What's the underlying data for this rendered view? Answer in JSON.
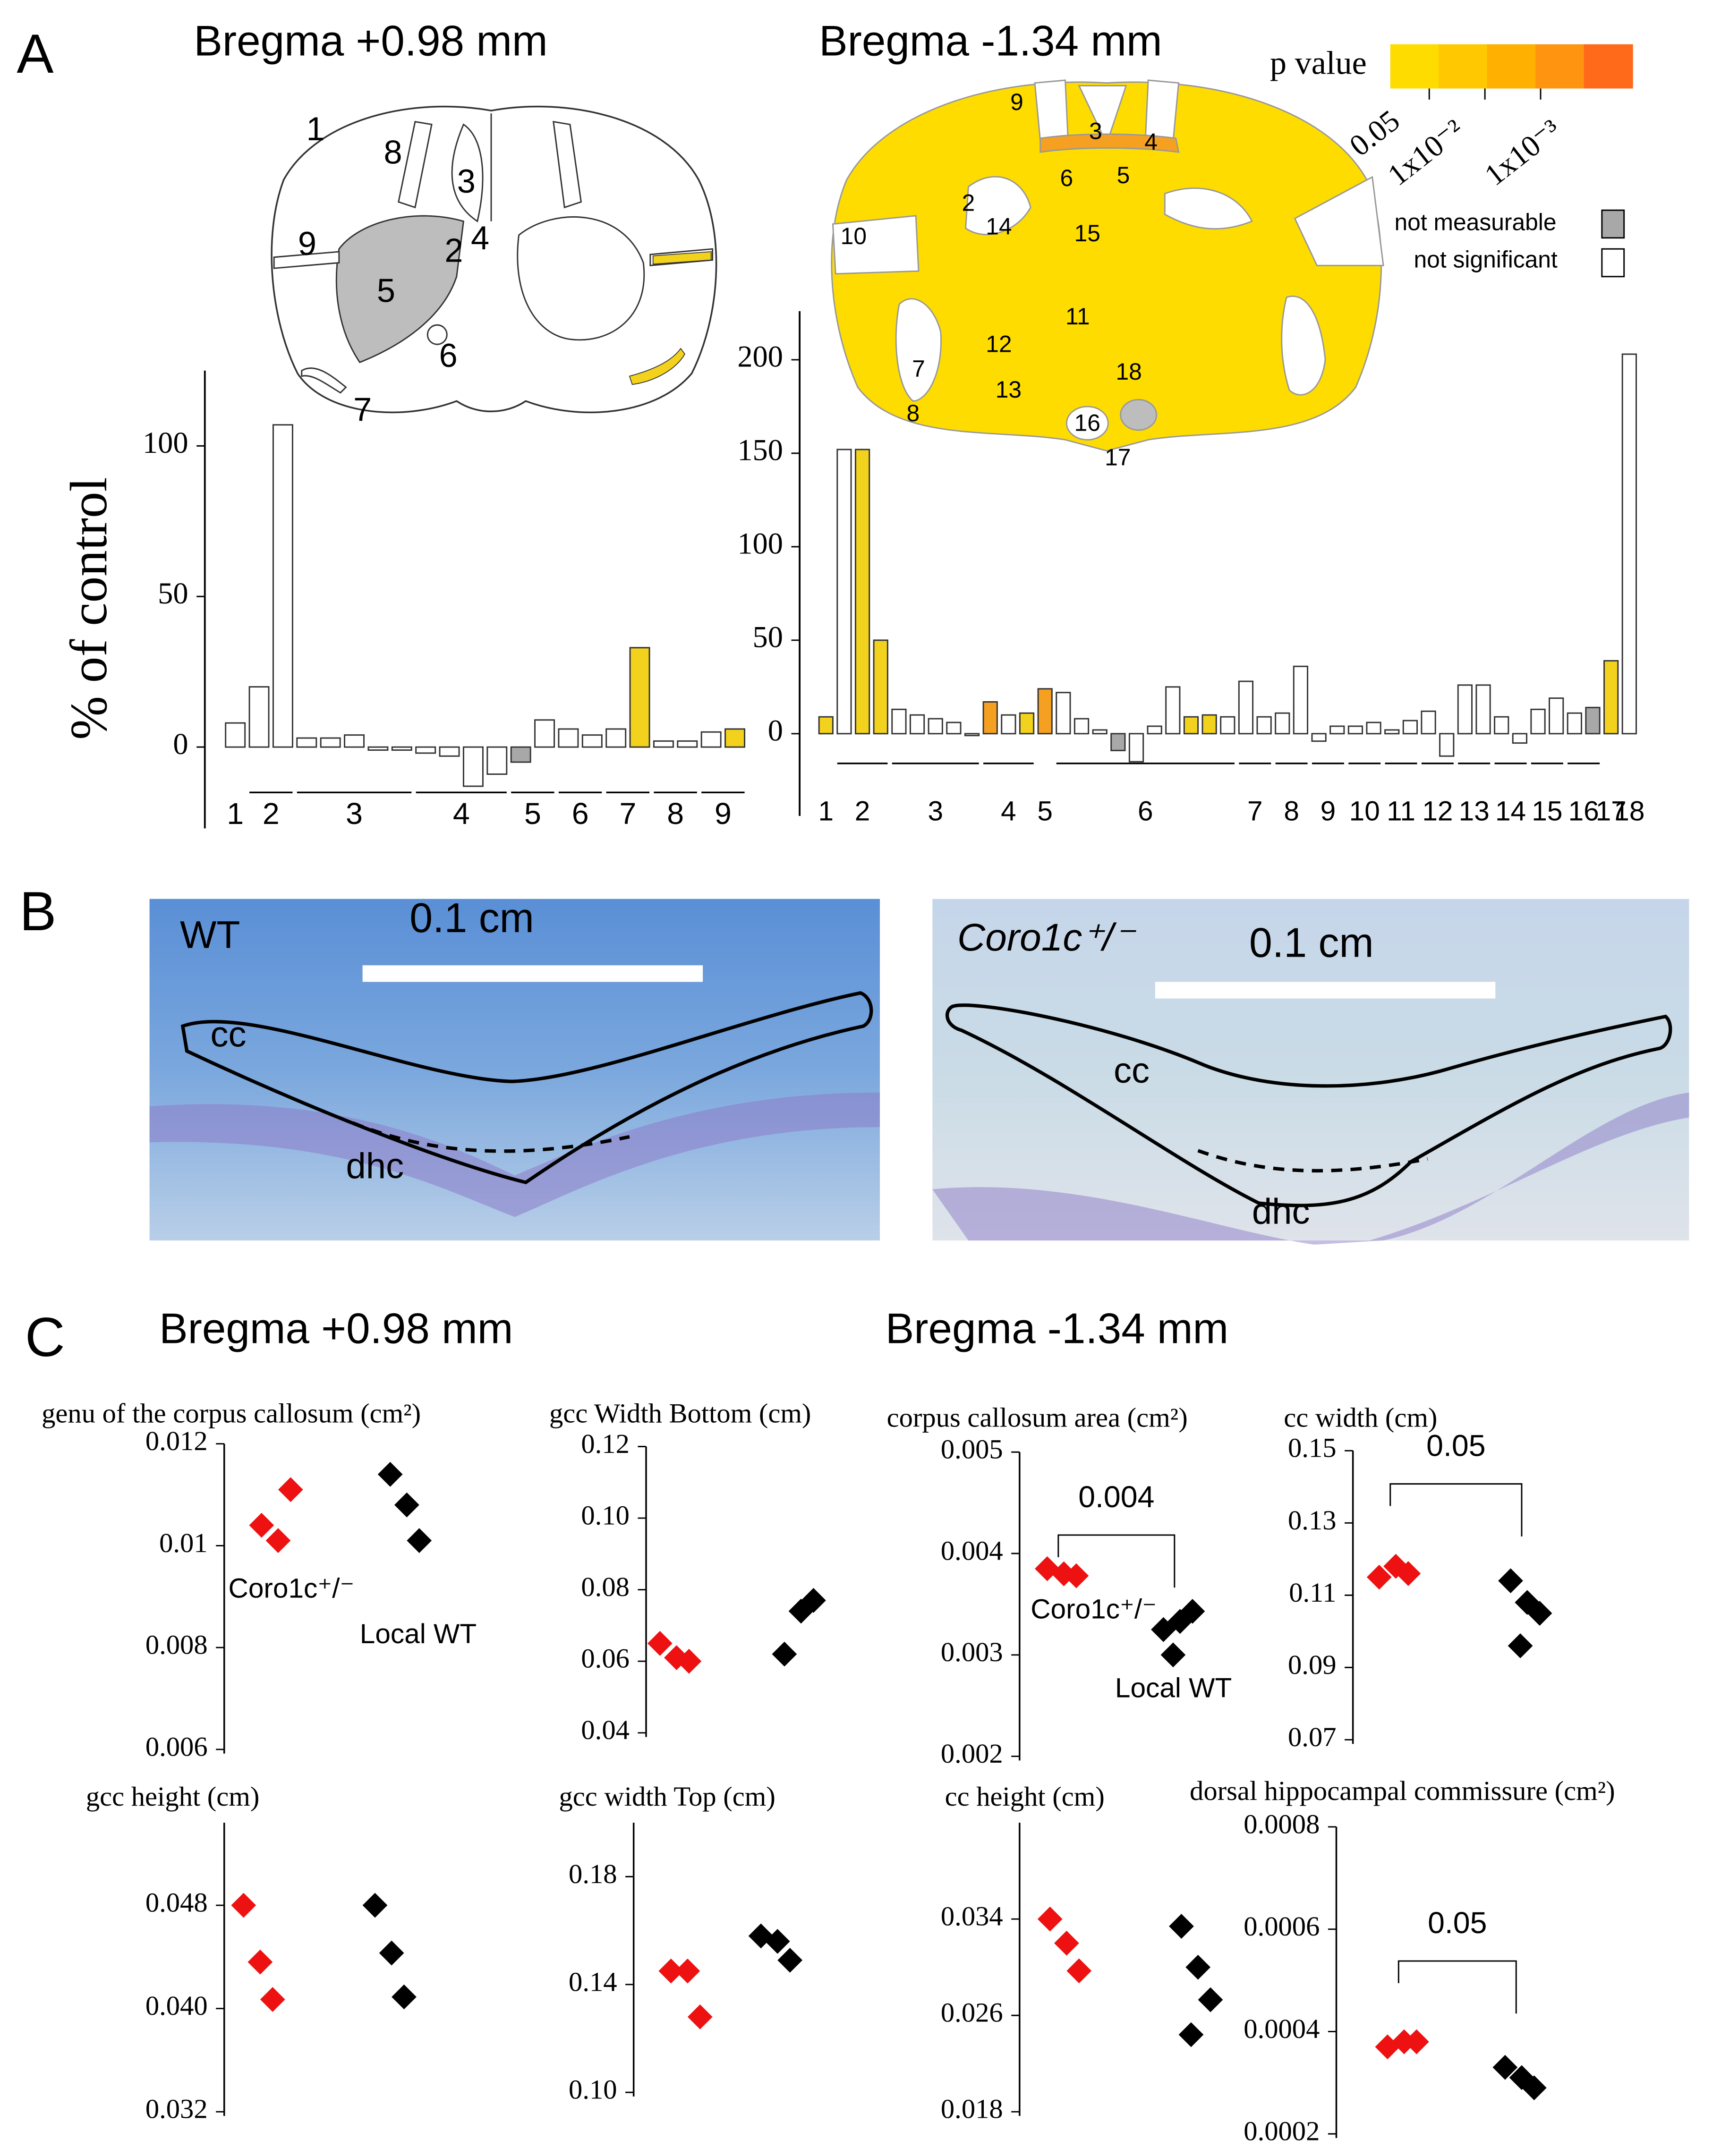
{
  "panel_labels": [
    "A",
    "B",
    "C"
  ],
  "panel_a": {
    "title_left": "Bregma +0.98 mm",
    "title_right": "Bregma -1.34 mm",
    "left_map_labels": [
      "1",
      "8",
      "3",
      "9",
      "2",
      "4",
      "5",
      "6",
      "7"
    ],
    "right_map_labels": [
      "9",
      "3",
      "4",
      "6",
      "5",
      "2",
      "14",
      "10",
      "15",
      "11",
      "12",
      "13",
      "7",
      "18",
      "8",
      "16",
      "17"
    ],
    "legend": {
      "title": "p value",
      "colors": [
        "#ffdc00",
        "#ffc800",
        "#ffb000",
        "#ff9410",
        "#ff6a1a"
      ],
      "scale_labels": [
        "0.05",
        "1x10⁻²",
        "1x10⁻³"
      ],
      "not_measurable": "not measurable",
      "not_measurable_color": "#a8a8a8",
      "not_significant": "not significant",
      "not_significant_color": "#ffffff"
    }
  },
  "panel_b": {
    "images": [
      {
        "label": "WT",
        "scale": "0.1 cm",
        "regions": [
          "cc",
          "dhc"
        ]
      },
      {
        "label": "Coro1c⁺/⁻",
        "scale": "0.1 cm",
        "regions": [
          "cc",
          "dhc"
        ]
      }
    ]
  },
  "panel_c": {
    "title_left": "Bregma +0.98 mm",
    "title_right": "Bregma -1.34 mm"
  },
  "chart_data": [
    {
      "type": "bar",
      "ylabel": "% of control",
      "categories": [
        "1",
        "2",
        "2",
        "3",
        "3",
        "3",
        "3",
        "3",
        "4",
        "4",
        "4",
        "4",
        "5",
        "5",
        "6",
        "6",
        "7",
        "7",
        "8",
        "8",
        "9",
        "9"
      ],
      "values": [
        8,
        20,
        107,
        3,
        3,
        4,
        -1,
        -1,
        -2,
        -3,
        -13,
        -9,
        -5,
        9,
        6,
        4,
        6,
        33,
        2,
        2,
        5,
        6
      ],
      "colors": [
        "#ffffff",
        "#ffffff",
        "#ffffff",
        "#ffffff",
        "#ffffff",
        "#ffffff",
        "#ffffff",
        "#ffffff",
        "#ffffff",
        "#ffffff",
        "#ffffff",
        "#ffffff",
        "#a8a8a8",
        "#ffffff",
        "#ffffff",
        "#ffffff",
        "#ffffff",
        "#f2d21c",
        "#ffffff",
        "#ffffff",
        "#ffffff",
        "#f2d21c"
      ],
      "ylim": [
        -27,
        125
      ],
      "yticks": [
        0,
        50,
        100
      ]
    },
    {
      "type": "bar",
      "categories": [
        "1",
        "2",
        "2",
        "2",
        "3",
        "3",
        "3",
        "3",
        "3",
        "4",
        "4",
        "4",
        "5",
        "6",
        "6",
        "6",
        "6",
        "6",
        "6",
        "6",
        "6",
        "6",
        "6",
        "7",
        "7",
        "8",
        "8",
        "9",
        "9",
        "10",
        "10",
        "11",
        "11",
        "12",
        "12",
        "13",
        "13",
        "14",
        "14",
        "15",
        "15",
        "16",
        "16",
        "17",
        "18"
      ],
      "values": [
        9,
        152,
        152,
        50,
        13,
        10,
        8,
        6,
        -1,
        17,
        10,
        11,
        24,
        22,
        8,
        2,
        -9,
        -15,
        4,
        25,
        9,
        10,
        9,
        28,
        9,
        11,
        36,
        -4,
        4,
        4,
        6,
        2,
        7,
        12,
        -12,
        26,
        26,
        9,
        -5,
        13,
        19,
        11,
        14,
        39,
        203
      ],
      "colors": [
        "#f2d21c",
        "#ffffff",
        "#f2d21c",
        "#f2d21c",
        "#ffffff",
        "#ffffff",
        "#ffffff",
        "#ffffff",
        "#ffffff",
        "#f5a020",
        "#ffffff",
        "#f2d21c",
        "#f5a020",
        "#ffffff",
        "#ffffff",
        "#ffffff",
        "#a8a8a8",
        "#ffffff",
        "#ffffff",
        "#ffffff",
        "#f2d21c",
        "#f2d21c",
        "#ffffff",
        "#ffffff",
        "#ffffff",
        "#ffffff",
        "#ffffff",
        "#ffffff",
        "#ffffff",
        "#ffffff",
        "#ffffff",
        "#ffffff",
        "#ffffff",
        "#ffffff",
        "#ffffff",
        "#ffffff",
        "#ffffff",
        "#ffffff",
        "#ffffff",
        "#ffffff",
        "#ffffff",
        "#ffffff",
        "#a8a8a8",
        "#f2d21c",
        "#ffffff"
      ],
      "ylim": [
        -44,
        226
      ],
      "yticks": [
        0,
        50,
        100,
        150,
        200
      ]
    },
    {
      "type": "scatter",
      "title": "genu of the corpus callosum (cm²)",
      "series": [
        {
          "name": "Coro1c⁺/⁻",
          "color": "#ee1111",
          "values": [
            0.0104,
            0.0101,
            0.0111
          ]
        },
        {
          "name": "Local WT",
          "color": "#000000",
          "values": [
            0.0114,
            0.0108,
            0.0101
          ]
        }
      ],
      "ylim": [
        0.006,
        0.012
      ],
      "yticks": [
        0.012,
        0.01,
        0.008,
        0.006
      ]
    },
    {
      "type": "scatter",
      "title": "gcc Width Bottom (cm)",
      "series": [
        {
          "color": "#ee1111",
          "values": [
            0.065,
            0.061,
            0.06
          ]
        },
        {
          "color": "#000000",
          "values": [
            0.062,
            0.074,
            0.077
          ]
        }
      ],
      "ylim": [
        0.04,
        0.12
      ],
      "yticks": [
        0.12,
        {
          "value": 0.1,
          "label": "0.10"
        },
        0.08,
        0.06,
        0.04
      ]
    },
    {
      "type": "scatter",
      "title": "corpus callosum area (cm²)",
      "series": [
        {
          "name": "Coro1c⁺/⁻",
          "color": "#ee1111",
          "values": [
            0.00385,
            0.0038,
            0.00378
          ]
        },
        {
          "name": "Local WT",
          "color": "#000000",
          "values": [
            0.00325,
            0.00333,
            0.00343,
            0.003
          ]
        }
      ],
      "annotation": "0.004",
      "ylim": [
        0.002,
        0.005
      ],
      "yticks": [
        0.005,
        0.004,
        0.003,
        0.002
      ]
    },
    {
      "type": "scatter",
      "title": "cc width (cm)",
      "series": [
        {
          "color": "#ee1111",
          "values": [
            0.115,
            0.118,
            0.116
          ]
        },
        {
          "color": "#000000",
          "values": [
            0.114,
            0.108,
            0.105,
            0.096
          ]
        }
      ],
      "annotation": "0.05",
      "ylim": [
        0.07,
        0.15
      ],
      "yticks": [
        0.15,
        0.13,
        0.11,
        0.09,
        0.07
      ]
    },
    {
      "type": "scatter",
      "title": "gcc height (cm)",
      "series": [
        {
          "color": "#ee1111",
          "values": [
            0.048,
            0.0436,
            0.0407
          ]
        },
        {
          "color": "#000000",
          "values": [
            0.048,
            0.0443,
            0.0409
          ]
        }
      ],
      "ylim": [
        0.032,
        0.0544
      ],
      "yticks": [
        0.048,
        {
          "value": 0.04,
          "label": "0.040"
        },
        0.032
      ]
    },
    {
      "type": "scatter",
      "title": "gcc width Top (cm)",
      "series": [
        {
          "color": "#ee1111",
          "values": [
            0.145,
            0.145,
            0.128
          ]
        },
        {
          "color": "#000000",
          "values": [
            0.158,
            0.156,
            0.149
          ]
        }
      ],
      "ylim": [
        0.1,
        0.2
      ],
      "yticks": [
        0.18,
        0.14,
        {
          "value": 0.1,
          "label": "0.10"
        }
      ]
    },
    {
      "type": "scatter",
      "title": "cc height (cm)",
      "series": [
        {
          "color": "#ee1111",
          "values": [
            0.034,
            0.032,
            0.0297
          ]
        },
        {
          "color": "#000000",
          "values": [
            0.0334,
            0.03,
            0.0273,
            0.0244
          ]
        }
      ],
      "ylim": [
        0.018,
        0.042
      ],
      "yticks": [
        0.034,
        0.026,
        0.018
      ]
    },
    {
      "type": "scatter",
      "title": "dorsal hippocampal commissure (cm²)",
      "series": [
        {
          "color": "#ee1111",
          "values": [
            0.00037,
            0.00038,
            0.00038
          ]
        },
        {
          "color": "#000000",
          "values": [
            0.00033,
            0.00031,
            0.00029
          ]
        }
      ],
      "annotation": "0.05",
      "ylim": [
        0.0002,
        0.0008
      ],
      "yticks": [
        0.0008,
        0.0006,
        0.0004,
        0.0002
      ]
    }
  ]
}
